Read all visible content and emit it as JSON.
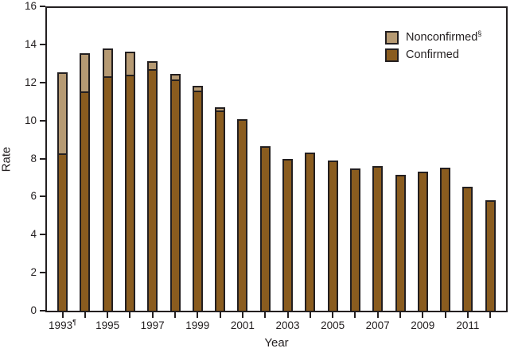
{
  "figure": {
    "y_axis_title": "Rate",
    "x_axis_title": "Year"
  },
  "legend": {
    "items": [
      {
        "label": "Nonconfirmed",
        "footnote_marker": "§",
        "series": "nonconfirmed"
      },
      {
        "label": "Confirmed",
        "footnote_marker": "",
        "series": "confirmed"
      }
    ]
  },
  "colors": {
    "confirmed": "#8a5c1f",
    "nonconfirmed": "#b69a73",
    "ink": "#231f20",
    "background": "#ffffff"
  },
  "chart_data": {
    "type": "bar",
    "stacked": true,
    "title": "",
    "xlabel": "Year",
    "ylabel": "Rate",
    "ylim": [
      0,
      16
    ],
    "y_ticks": [
      0,
      2,
      4,
      6,
      8,
      10,
      12,
      14,
      16
    ],
    "grid": false,
    "legend_position": "top-right",
    "categories": [
      "1993",
      "1994",
      "1995",
      "1996",
      "1997",
      "1998",
      "1999",
      "2000",
      "2001",
      "2002",
      "2003",
      "2004",
      "2005",
      "2006",
      "2007",
      "2008",
      "2009",
      "2010",
      "2011",
      "2012"
    ],
    "x_labeled_categories": [
      "1993",
      "1995",
      "1997",
      "1999",
      "2001",
      "2003",
      "2005",
      "2007",
      "2009",
      "2011"
    ],
    "x_footnotes": {
      "1993": "¶"
    },
    "series": [
      {
        "name": "Confirmed",
        "color": "#8a5c1f",
        "values": [
          8.3,
          11.6,
          12.4,
          12.5,
          12.8,
          12.2,
          11.65,
          10.6,
          10.1,
          8.7,
          8.0,
          8.35,
          7.95,
          7.5,
          7.65,
          7.2,
          7.35,
          7.55,
          6.55,
          5.85
        ]
      },
      {
        "name": "Nonconfirmed§",
        "color": "#b69a73",
        "values": [
          4.3,
          2.0,
          1.45,
          1.2,
          0.4,
          0.3,
          0.25,
          0.15,
          0,
          0,
          0,
          0,
          0,
          0,
          0,
          0,
          0,
          0,
          0,
          0
        ]
      }
    ],
    "totals": [
      12.6,
      13.6,
      13.85,
      13.7,
      13.2,
      12.5,
      11.9,
      10.75,
      10.1,
      8.7,
      8.0,
      8.35,
      7.95,
      7.5,
      7.65,
      7.2,
      7.35,
      7.55,
      6.55,
      5.85
    ]
  }
}
